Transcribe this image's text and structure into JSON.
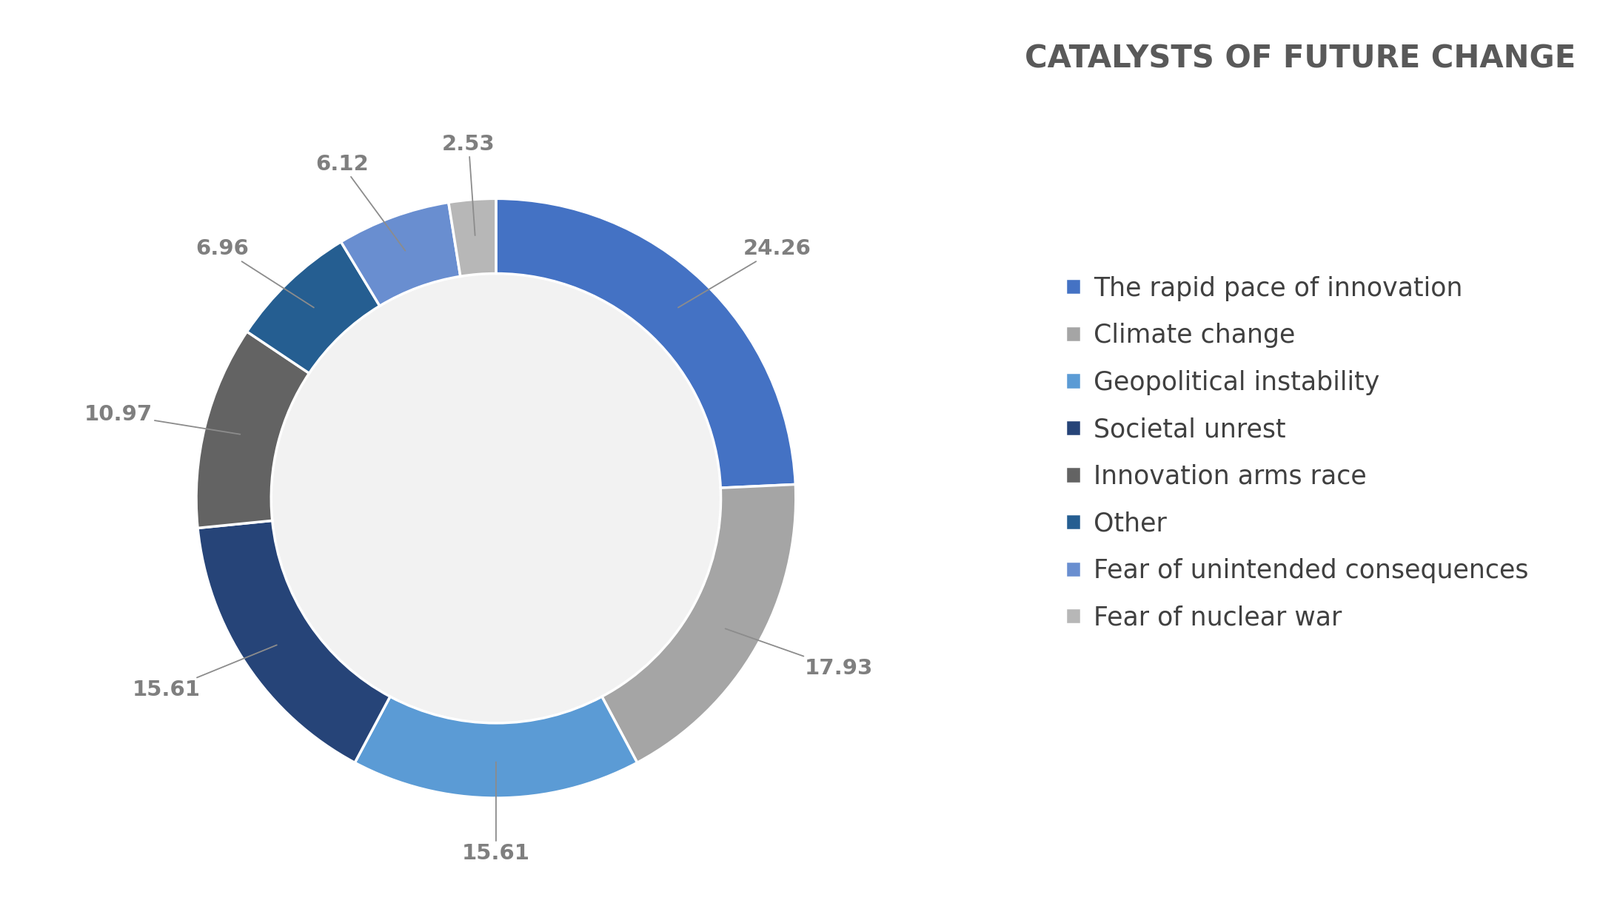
{
  "chart_data": {
    "type": "donut",
    "title": "CATALYSTS OF FUTURE CHANGE",
    "categories": [
      "The rapid pace of innovation",
      "Climate change",
      "Geopolitical instability",
      "Societal unrest",
      "Innovation arms race",
      "Other",
      "Fear of unintended consequences",
      "Fear of nuclear war"
    ],
    "values": [
      24.26,
      17.93,
      15.61,
      15.61,
      10.97,
      6.96,
      6.12,
      2.53
    ],
    "colors": [
      "#4472c4",
      "#a5a5a5",
      "#5b9bd5",
      "#264478",
      "#636363",
      "#255e91",
      "#698ed0",
      "#b7b7b7"
    ],
    "data_labels": true,
    "legend": "right"
  }
}
